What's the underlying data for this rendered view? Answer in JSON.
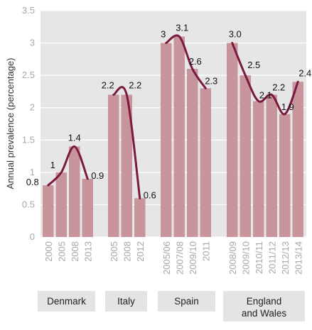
{
  "chart_data": {
    "type": "bar",
    "ylabel": "Annual prevalence (percentage)",
    "ylim": [
      0,
      3.5
    ],
    "yticks": [
      "0",
      "0.5",
      "1",
      "1.5",
      "2",
      "2.5",
      "3",
      "3.5"
    ],
    "grid": true,
    "colors": {
      "bar": "#c9959d",
      "line": "#7b1a3e",
      "background": "#e6e6e6",
      "grid": "#ffffff",
      "group_box": "#e4e4e4"
    },
    "groups": [
      {
        "name": "Denmark",
        "categories": [
          "2000",
          "2005",
          "2008",
          "2013"
        ],
        "values": [
          0.8,
          1.0,
          1.4,
          0.9
        ],
        "labels": [
          "0.8",
          "1",
          "1.4",
          "0.9"
        ]
      },
      {
        "name": "Italy",
        "categories": [
          "2005",
          "2008",
          "2012"
        ],
        "values": [
          2.2,
          2.2,
          0.6
        ],
        "labels": [
          "2.2",
          "2.2",
          "0.6"
        ]
      },
      {
        "name": "Spain",
        "categories": [
          "2005/06",
          "2007/08",
          "2009/10",
          "2011"
        ],
        "values": [
          3.0,
          3.1,
          2.6,
          2.3
        ],
        "labels": [
          "3",
          "3.1",
          "2.6",
          "2.3"
        ]
      },
      {
        "name": "England and Wales",
        "name_lines": [
          "England",
          "and Wales"
        ],
        "categories": [
          "2008/09",
          "2009/10",
          "2010/11",
          "2011/12",
          "2012/13",
          "2013/14"
        ],
        "values": [
          3.0,
          2.5,
          2.1,
          2.2,
          1.9,
          2.4
        ],
        "labels": [
          "3.0",
          "2.5",
          "2.1",
          "2.2",
          "1.9",
          "2.4"
        ]
      }
    ]
  }
}
